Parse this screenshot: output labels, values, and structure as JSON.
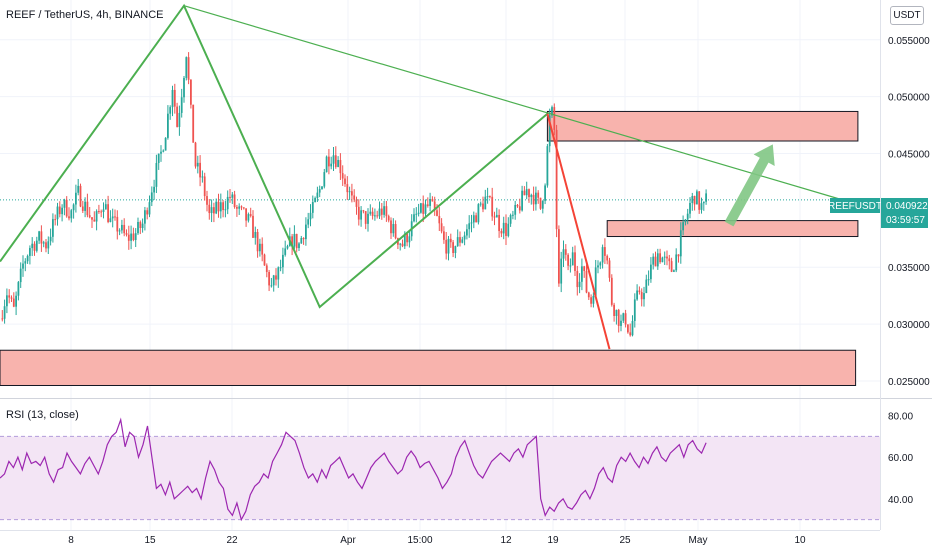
{
  "header": {
    "title": "REEF / TetherUS, 4h, BINANCE",
    "currency_button": "USDT"
  },
  "rsi_panel": {
    "title": "RSI (13, close)",
    "ticks": [
      "80.00",
      "60.00",
      "40.00"
    ]
  },
  "price_badge": {
    "symbol": "REEFUSDT",
    "price": "0.040922",
    "countdown": "03:59:57"
  },
  "colors": {
    "up": "#26a69a",
    "down": "#ef5350",
    "pattern_green": "#4caf50",
    "pattern_red": "#f44336",
    "zone_fill": "#f8b3ad",
    "rsi_line": "#9c27b0",
    "rsi_band": "#f3e5f5",
    "badge": "#26a69a"
  },
  "chart_data": [
    {
      "type": "candlestick",
      "title": "REEF / TetherUS, 4h, BINANCE",
      "x_ticks": [
        "8",
        "15",
        "22",
        "Apr",
        "15:00",
        "12",
        "19",
        "25",
        "May",
        "10"
      ],
      "y_ticks": [
        0.055,
        0.05,
        0.045,
        0.035,
        0.03,
        0.025
      ],
      "y_tick_labels": [
        "0.055000",
        "0.050000",
        "0.045000",
        "0.035000",
        "0.030000",
        "0.025000"
      ],
      "ylim": [
        0.0235,
        0.0585
      ],
      "last_price": 0.040922,
      "price_path": [
        [
          0,
          0.0305
        ],
        [
          3,
          0.0328
        ],
        [
          6,
          0.0312
        ],
        [
          10,
          0.0352
        ],
        [
          13,
          0.0368
        ],
        [
          17,
          0.0375
        ],
        [
          20,
          0.037
        ],
        [
          24,
          0.0392
        ],
        [
          27,
          0.0405
        ],
        [
          31,
          0.0398
        ],
        [
          34,
          0.0415
        ],
        [
          38,
          0.04
        ],
        [
          41,
          0.0388
        ],
        [
          45,
          0.0408
        ],
        [
          48,
          0.039
        ],
        [
          52,
          0.0384
        ],
        [
          55,
          0.0375
        ],
        [
          59,
          0.038
        ],
        [
          62,
          0.0388
        ],
        [
          66,
          0.042
        ],
        [
          70,
          0.045
        ],
        [
          72,
          0.047
        ],
        [
          75,
          0.051
        ],
        [
          77,
          0.0475
        ],
        [
          79,
          0.0505
        ],
        [
          81,
          0.054
        ],
        [
          83,
          0.0485
        ],
        [
          85,
          0.044
        ],
        [
          88,
          0.0425
        ],
        [
          91,
          0.0395
        ],
        [
          94,
          0.04
        ],
        [
          97,
          0.0405
        ],
        [
          100,
          0.0412
        ],
        [
          103,
          0.04
        ],
        [
          106,
          0.0395
        ],
        [
          109,
          0.0388
        ],
        [
          112,
          0.037
        ],
        [
          115,
          0.035
        ],
        [
          118,
          0.0332
        ],
        [
          121,
          0.0345
        ],
        [
          124,
          0.036
        ],
        [
          127,
          0.0375
        ],
        [
          130,
          0.037
        ],
        [
          133,
          0.0388
        ],
        [
          136,
          0.04
        ],
        [
          139,
          0.0418
        ],
        [
          142,
          0.0445
        ],
        [
          145,
          0.045
        ],
        [
          148,
          0.0438
        ],
        [
          151,
          0.042
        ],
        [
          154,
          0.0402
        ],
        [
          157,
          0.0395
        ],
        [
          160,
          0.0392
        ],
        [
          163,
          0.0395
        ],
        [
          166,
          0.04
        ],
        [
          169,
          0.039
        ],
        [
          172,
          0.0378
        ],
        [
          175,
          0.037
        ],
        [
          178,
          0.0382
        ],
        [
          181,
          0.0395
        ],
        [
          184,
          0.04
        ],
        [
          187,
          0.0405
        ],
        [
          190,
          0.0392
        ],
        [
          193,
          0.0372
        ],
        [
          196,
          0.0365
        ],
        [
          199,
          0.0372
        ],
        [
          202,
          0.038
        ],
        [
          205,
          0.039
        ],
        [
          208,
          0.04
        ],
        [
          211,
          0.041
        ],
        [
          214,
          0.0402
        ],
        [
          217,
          0.0388
        ],
        [
          220,
          0.0383
        ],
        [
          223,
          0.0393
        ],
        [
          226,
          0.0405
        ],
        [
          229,
          0.0418
        ],
        [
          232,
          0.0413
        ],
        [
          235,
          0.0402
        ],
        [
          237,
          0.0428
        ],
        [
          239,
          0.048
        ],
        [
          240,
          0.0485
        ],
        [
          241,
          0.047
        ],
        [
          242,
          0.0385
        ],
        [
          243,
          0.033
        ],
        [
          245,
          0.037
        ],
        [
          247,
          0.0345
        ],
        [
          249,
          0.036
        ],
        [
          251,
          0.034
        ],
        [
          253,
          0.035
        ],
        [
          255,
          0.033
        ],
        [
          257,
          0.032
        ],
        [
          259,
          0.0345
        ],
        [
          261,
          0.036
        ],
        [
          262,
          0.0375
        ],
        [
          264,
          0.0355
        ],
        [
          266,
          0.032
        ],
        [
          268,
          0.031
        ],
        [
          270,
          0.03
        ],
        [
          272,
          0.0305
        ],
        [
          274,
          0.029
        ],
        [
          276,
          0.0315
        ],
        [
          278,
          0.033
        ],
        [
          280,
          0.0325
        ],
        [
          282,
          0.0342
        ],
        [
          284,
          0.0355
        ],
        [
          286,
          0.0362
        ],
        [
          288,
          0.0358
        ],
        [
          290,
          0.0352
        ],
        [
          292,
          0.0348
        ],
        [
          294,
          0.036
        ],
        [
          296,
          0.0375
        ],
        [
          298,
          0.039
        ],
        [
          300,
          0.0405
        ],
        [
          302,
          0.0413
        ],
        [
          304,
          0.0405
        ],
        [
          306,
          0.0402
        ],
        [
          307,
          0.0409
        ]
      ],
      "pattern_lines": [
        {
          "color": "green",
          "points": [
            [
              0,
              0.0355
            ],
            [
              80,
              0.058
            ],
            [
              139,
              0.0315
            ],
            [
              238,
              0.0485
            ]
          ]
        },
        {
          "color": "red",
          "points": [
            [
              238,
              0.0485
            ],
            [
              265,
              0.0278
            ]
          ]
        }
      ],
      "trend_line": {
        "points": [
          [
            80,
            0.058
          ],
          [
            365,
            0.041
          ]
        ]
      },
      "zones": [
        {
          "x0": 238,
          "x1": 373,
          "y0": 0.0461,
          "y1": 0.0487
        },
        {
          "x0": 264,
          "x1": 373,
          "y0": 0.0377,
          "y1": 0.0391
        },
        {
          "x0": 0,
          "x1": 372,
          "y0": 0.0246,
          "y1": 0.0277
        }
      ],
      "arrow": {
        "from": [
          317,
          0.0388
        ],
        "to": [
          336,
          0.0458
        ]
      }
    },
    {
      "type": "line",
      "title": "RSI (13, close)",
      "ylim": [
        25,
        88
      ],
      "y_ticks": [
        80,
        60,
        40
      ],
      "band": [
        30,
        70
      ],
      "values": [
        50,
        52,
        58,
        55,
        60,
        54,
        62,
        57,
        58,
        56,
        60,
        52,
        48,
        54,
        55,
        62,
        58,
        55,
        52,
        57,
        60,
        56,
        52,
        58,
        66,
        70,
        72,
        78,
        65,
        72,
        70,
        60,
        66,
        75,
        60,
        45,
        47,
        42,
        48,
        40,
        42,
        44,
        46,
        43,
        45,
        40,
        50,
        58,
        54,
        48,
        45,
        35,
        32,
        38,
        30,
        34,
        42,
        46,
        48,
        52,
        50,
        58,
        62,
        66,
        72,
        70,
        68,
        62,
        55,
        50,
        52,
        48,
        54,
        50,
        56,
        58,
        60,
        55,
        50,
        52,
        48,
        45,
        50,
        55,
        58,
        60,
        62,
        58,
        55,
        52,
        54,
        60,
        63,
        60,
        55,
        57,
        58,
        54,
        50,
        45,
        48,
        52,
        60,
        65,
        68,
        62,
        56,
        52,
        50,
        54,
        58,
        60,
        62,
        60,
        58,
        62,
        64,
        60,
        66,
        68,
        70,
        40,
        32,
        36,
        34,
        38,
        40,
        36,
        35,
        38,
        42,
        44,
        40,
        45,
        52,
        55,
        50,
        48,
        56,
        60,
        58,
        62,
        58,
        55,
        60,
        57,
        62,
        65,
        60,
        58,
        62,
        64,
        66,
        60,
        66,
        68,
        64,
        62,
        67
      ]
    }
  ]
}
